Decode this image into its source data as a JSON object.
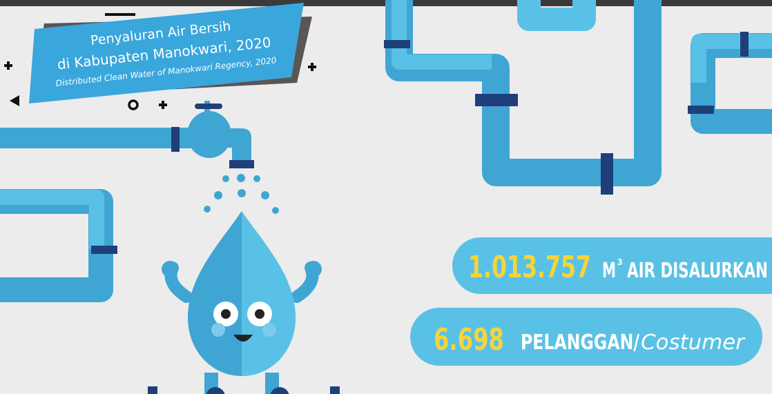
{
  "title": {
    "line1": "Penyaluran Air Bersih",
    "line2": "di Kabupaten Manokwari, 2020",
    "subtitle": "Distributed Clean Water of Manokwari Regency, 2020"
  },
  "stats": [
    {
      "number": "1.013.757",
      "unit": "M",
      "unit_exponent": "3",
      "label": "AIR DISALURKAN"
    },
    {
      "number": "6.698",
      "label": "PELANGGAN/",
      "label_english": "Costumer"
    }
  ]
}
